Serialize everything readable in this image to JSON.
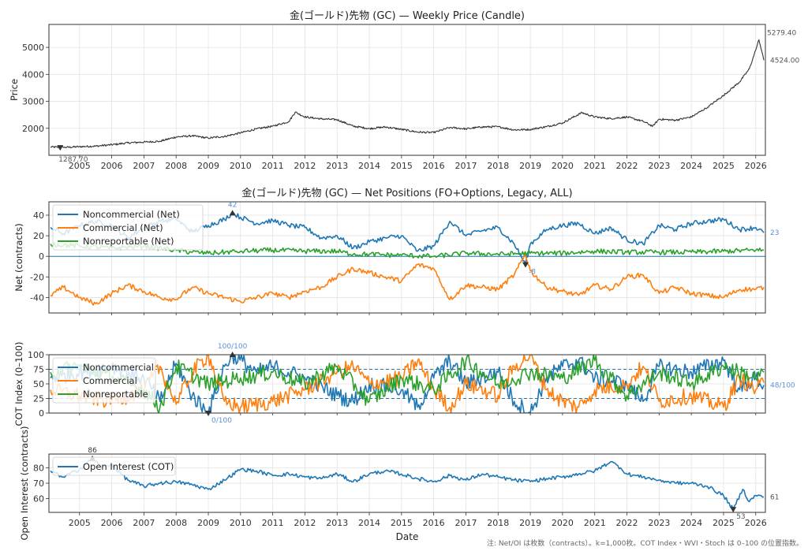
{
  "chart_data": [
    {
      "type": "line",
      "id": "price",
      "title": "金(ゴールド)先物 (GC) — Weekly Price (Candle)",
      "xlabel": "",
      "ylabel": "Price",
      "x_ticks": [
        "2005",
        "2006",
        "2007",
        "2008",
        "2009",
        "2010",
        "2011",
        "2012",
        "2013",
        "2014",
        "2015",
        "2016",
        "2017",
        "2018",
        "2019",
        "2020",
        "2021",
        "2022",
        "2023",
        "2024",
        "2025",
        "2026"
      ],
      "xlim": [
        2004.05,
        2026.3
      ],
      "ylim": [
        1000,
        5850
      ],
      "y_ticks": [
        2000,
        3000,
        4000,
        5000
      ],
      "grid": true,
      "series": [
        {
          "name": "Price",
          "color": "#333333",
          "x": [
            2004.1,
            2004.5,
            2005.0,
            2005.5,
            2006.0,
            2006.5,
            2007.0,
            2007.5,
            2008.0,
            2008.5,
            2009.0,
            2009.5,
            2010.0,
            2010.5,
            2011.0,
            2011.5,
            2011.7,
            2012.0,
            2012.5,
            2013.0,
            2013.5,
            2014.0,
            2014.5,
            2015.0,
            2015.5,
            2016.0,
            2016.5,
            2017.0,
            2017.5,
            2018.0,
            2018.5,
            2019.0,
            2019.5,
            2020.0,
            2020.6,
            2021.0,
            2021.5,
            2022.0,
            2022.5,
            2022.8,
            2023.0,
            2023.5,
            2024.0,
            2024.5,
            2025.0,
            2025.5,
            2025.8,
            2026.0,
            2026.1,
            2026.2,
            2026.25
          ],
          "y": [
            1310,
            1290,
            1320,
            1340,
            1390,
            1460,
            1490,
            1520,
            1680,
            1720,
            1640,
            1700,
            1830,
            1980,
            2080,
            2250,
            2600,
            2420,
            2350,
            2320,
            2080,
            1990,
            2050,
            1960,
            1860,
            1840,
            2030,
            1980,
            2050,
            2060,
            1940,
            1960,
            2060,
            2200,
            2580,
            2420,
            2360,
            2420,
            2260,
            2080,
            2340,
            2300,
            2420,
            2780,
            3220,
            3720,
            4200,
            4900,
            5279.4,
            4800,
            4524
          ]
        }
      ],
      "annotations": [
        {
          "label": "1287.70",
          "x": 2004.4,
          "y": 1287.7,
          "marker": "min"
        },
        {
          "label": "5279.40",
          "x": 2026.1,
          "y": 5279.4,
          "marker": "max"
        },
        {
          "label": "4524.00",
          "x": 2026.25,
          "y": 4524,
          "marker": "last"
        }
      ]
    },
    {
      "type": "line",
      "id": "net",
      "title": "金(ゴールド)先物 (GC) — Net Positions (FO+Options, Legacy, ALL)",
      "xlabel": "",
      "ylabel": "Net (contracts)",
      "xlim": [
        2004.05,
        2026.3
      ],
      "ylim": [
        -55,
        53
      ],
      "y_ticks": [
        -40,
        -20,
        0,
        20,
        40
      ],
      "legend": "top-left",
      "grid": true,
      "series": [
        {
          "name": "Noncommercial (Net)",
          "color": "#1f77b4",
          "x": [
            2004.1,
            2004.5,
            2005.0,
            2005.5,
            2006.0,
            2006.5,
            2007.0,
            2007.5,
            2008.0,
            2008.5,
            2009.0,
            2009.5,
            2009.75,
            2010.0,
            2010.5,
            2011.0,
            2011.5,
            2012.0,
            2012.5,
            2013.0,
            2013.5,
            2014.0,
            2014.5,
            2015.0,
            2015.5,
            2016.0,
            2016.5,
            2017.0,
            2017.5,
            2018.0,
            2018.5,
            2018.85,
            2019.0,
            2019.5,
            2020.0,
            2020.5,
            2021.0,
            2021.5,
            2022.0,
            2022.5,
            2023.0,
            2023.5,
            2024.0,
            2024.5,
            2025.0,
            2025.5,
            2026.0,
            2026.25
          ],
          "y": [
            28,
            22,
            30,
            34,
            30,
            18,
            28,
            34,
            36,
            24,
            30,
            36,
            42,
            38,
            32,
            35,
            30,
            28,
            18,
            20,
            8,
            14,
            18,
            20,
            5,
            10,
            34,
            20,
            25,
            28,
            12,
            -8,
            12,
            26,
            30,
            32,
            22,
            28,
            16,
            12,
            30,
            26,
            32,
            34,
            36,
            26,
            28,
            23
          ]
        },
        {
          "name": "Commercial (Net)",
          "color": "#ff7f0e",
          "x": [
            2004.1,
            2004.5,
            2005.0,
            2005.5,
            2006.0,
            2006.5,
            2007.0,
            2007.5,
            2008.0,
            2008.5,
            2009.0,
            2009.5,
            2010.0,
            2010.5,
            2011.0,
            2011.5,
            2012.0,
            2012.5,
            2013.0,
            2013.5,
            2014.0,
            2014.5,
            2015.0,
            2015.5,
            2016.0,
            2016.5,
            2017.0,
            2017.5,
            2018.0,
            2018.5,
            2018.85,
            2019.0,
            2019.5,
            2020.0,
            2020.5,
            2021.0,
            2021.5,
            2022.0,
            2022.5,
            2023.0,
            2023.5,
            2024.0,
            2024.5,
            2025.0,
            2025.5,
            2026.0,
            2026.25
          ],
          "y": [
            -38,
            -30,
            -40,
            -46,
            -36,
            -28,
            -34,
            -40,
            -42,
            -30,
            -36,
            -40,
            -44,
            -40,
            -36,
            -40,
            -34,
            -30,
            -20,
            -12,
            -16,
            -20,
            -24,
            -8,
            -12,
            -42,
            -28,
            -30,
            -32,
            -18,
            2,
            -14,
            -30,
            -34,
            -38,
            -28,
            -32,
            -20,
            -18,
            -36,
            -30,
            -36,
            -38,
            -40,
            -32,
            -32,
            -30
          ]
        },
        {
          "name": "Nonreportable (Net)",
          "color": "#2ca02c",
          "x": [
            2004.1,
            2005.0,
            2006.0,
            2007.0,
            2008.0,
            2008.5,
            2009.0,
            2010.0,
            2011.0,
            2012.0,
            2013.0,
            2013.5,
            2014.0,
            2015.0,
            2016.0,
            2017.0,
            2018.0,
            2019.0,
            2020.0,
            2021.0,
            2022.0,
            2023.0,
            2024.0,
            2025.0,
            2026.0,
            2026.25
          ],
          "y": [
            12,
            10,
            8,
            10,
            6,
            4,
            3,
            5,
            6,
            5,
            5,
            2,
            2,
            1,
            0,
            3,
            2,
            3,
            3,
            5,
            4,
            4,
            4,
            5,
            6,
            6
          ]
        }
      ],
      "annotations": [
        {
          "label": "42",
          "x": 2009.75,
          "y": 42,
          "marker": "max"
        },
        {
          "label": "-8",
          "x": 2018.85,
          "y": -8,
          "marker": "min"
        },
        {
          "label": "23",
          "x": 2026.25,
          "y": 23,
          "marker": "last"
        }
      ]
    },
    {
      "type": "line",
      "id": "cot_index",
      "title": "",
      "xlabel": "",
      "ylabel": "COT Index (0–100)",
      "xlim": [
        2004.05,
        2026.3
      ],
      "ylim": [
        0,
        100
      ],
      "y_ticks": [
        0,
        25,
        50,
        75,
        100
      ],
      "reference_lines": [
        25,
        75
      ],
      "legend": "top-left",
      "grid": true,
      "series": [
        {
          "name": "Noncommercial",
          "color": "#1f77b4",
          "x": [
            2004.1,
            2005.0,
            2006.0,
            2007.0,
            2007.5,
            2008.0,
            2008.5,
            2009.0,
            2009.5,
            2009.75,
            2010.5,
            2011.0,
            2012.0,
            2013.0,
            2013.5,
            2014.0,
            2015.0,
            2015.5,
            2016.0,
            2016.5,
            2017.0,
            2018.0,
            2018.5,
            2019.0,
            2019.5,
            2020.0,
            2020.5,
            2021.0,
            2022.0,
            2022.5,
            2023.0,
            2024.0,
            2025.0,
            2025.5,
            2026.0,
            2026.25
          ],
          "y": [
            60,
            70,
            80,
            60,
            20,
            85,
            30,
            0,
            80,
            100,
            70,
            80,
            60,
            30,
            20,
            50,
            40,
            10,
            60,
            90,
            50,
            70,
            20,
            0,
            60,
            80,
            90,
            60,
            50,
            20,
            80,
            70,
            90,
            40,
            60,
            48
          ]
        },
        {
          "name": "Commercial",
          "color": "#ff7f0e",
          "x": [
            2004.1,
            2005.0,
            2006.0,
            2007.0,
            2007.5,
            2008.0,
            2008.5,
            2009.0,
            2009.5,
            2010.0,
            2011.0,
            2012.0,
            2013.0,
            2013.5,
            2014.0,
            2015.0,
            2015.5,
            2016.0,
            2016.5,
            2017.0,
            2018.0,
            2018.5,
            2019.0,
            2019.5,
            2020.0,
            2020.5,
            2021.0,
            2022.0,
            2022.5,
            2023.0,
            2024.0,
            2025.0,
            2025.5,
            2026.0,
            2026.25
          ],
          "y": [
            40,
            30,
            20,
            40,
            80,
            15,
            70,
            100,
            20,
            10,
            20,
            40,
            70,
            80,
            50,
            60,
            90,
            40,
            10,
            50,
            30,
            80,
            100,
            40,
            20,
            10,
            40,
            50,
            80,
            20,
            30,
            10,
            60,
            40,
            52
          ]
        },
        {
          "name": "Nonreportable",
          "color": "#2ca02c",
          "x": [
            2004.1,
            2005.0,
            2006.0,
            2007.0,
            2007.5,
            2008.0,
            2009.0,
            2010.0,
            2011.0,
            2012.0,
            2013.0,
            2014.0,
            2015.0,
            2016.0,
            2017.0,
            2018.0,
            2019.0,
            2020.0,
            2021.0,
            2022.0,
            2023.0,
            2024.0,
            2025.0,
            2026.0,
            2026.25
          ],
          "y": [
            70,
            80,
            60,
            40,
            10,
            80,
            50,
            60,
            70,
            50,
            80,
            20,
            60,
            40,
            90,
            50,
            70,
            60,
            90,
            30,
            70,
            50,
            80,
            60,
            70
          ]
        }
      ],
      "annotations": [
        {
          "label": "100/100",
          "x": 2009.75,
          "y": 100,
          "marker": "max"
        },
        {
          "label": "0/100",
          "x": 2009.0,
          "y": 0,
          "marker": "min"
        },
        {
          "label": "48/100",
          "x": 2026.25,
          "y": 48,
          "marker": "last"
        }
      ]
    },
    {
      "type": "line",
      "id": "open_interest",
      "title": "",
      "xlabel": "Date",
      "ylabel": "Open Interest (contracts)",
      "x_ticks": [
        "2005",
        "2006",
        "2007",
        "2008",
        "2009",
        "2010",
        "2011",
        "2012",
        "2013",
        "2014",
        "2015",
        "2016",
        "2017",
        "2018",
        "2019",
        "2020",
        "2021",
        "2022",
        "2023",
        "2024",
        "2025",
        "2026"
      ],
      "xlim": [
        2004.05,
        2026.3
      ],
      "ylim": [
        51,
        89
      ],
      "y_ticks": [
        60,
        70,
        80
      ],
      "legend": "top-left",
      "grid": true,
      "series": [
        {
          "name": "Open Interest (COT)",
          "color": "#1f77b4",
          "x": [
            2004.1,
            2004.5,
            2005.0,
            2005.4,
            2005.7,
            2006.0,
            2006.5,
            2007.0,
            2007.5,
            2008.0,
            2008.5,
            2009.0,
            2009.5,
            2010.0,
            2010.5,
            2011.0,
            2011.5,
            2012.0,
            2012.5,
            2013.0,
            2013.5,
            2014.0,
            2014.5,
            2015.0,
            2015.5,
            2016.0,
            2016.5,
            2017.0,
            2017.5,
            2018.0,
            2018.5,
            2019.0,
            2019.5,
            2020.0,
            2020.5,
            2021.0,
            2021.5,
            2021.8,
            2022.0,
            2022.5,
            2023.0,
            2023.5,
            2024.0,
            2024.5,
            2025.0,
            2025.3,
            2025.6,
            2025.8,
            2026.0,
            2026.25
          ],
          "y": [
            78,
            74,
            79,
            86,
            80,
            82,
            72,
            68,
            70,
            71,
            69,
            66,
            72,
            79,
            78,
            75,
            76,
            74,
            73,
            76,
            71,
            76,
            78,
            76,
            73,
            71,
            75,
            72,
            76,
            74,
            72,
            71,
            73,
            74,
            76,
            78,
            84,
            80,
            76,
            74,
            72,
            70,
            70,
            68,
            62,
            53,
            66,
            58,
            62,
            61
          ]
        }
      ],
      "annotations": [
        {
          "label": "86",
          "x": 2005.4,
          "y": 86,
          "marker": "max"
        },
        {
          "label": "53",
          "x": 2025.3,
          "y": 53,
          "marker": "min"
        },
        {
          "label": "61",
          "x": 2026.25,
          "y": 61,
          "marker": "last"
        }
      ]
    }
  ],
  "footnote": "注: Net/OI は枚数（contracts）。k=1,000枚。COT Index・WVI・Stoch は 0–100 の位置指数。"
}
